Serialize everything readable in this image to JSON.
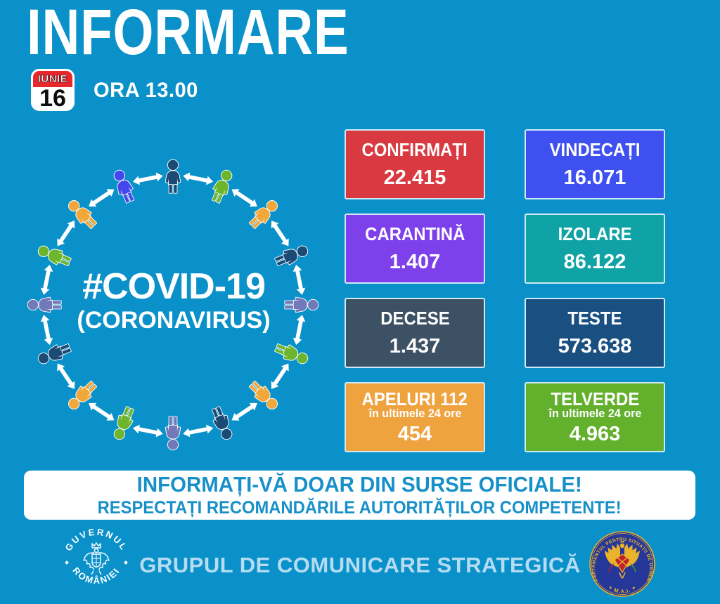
{
  "colors": {
    "background": "#0a91c9",
    "box_border": "#cfe9f6",
    "calendar_red": "#e8262b",
    "banner_text": "#1790c9",
    "footer_text": "#b5dcf2"
  },
  "header": {
    "title": "INFORMARE",
    "time": "ORA 13.00",
    "calendar": {
      "month": "IUNIE",
      "day": "16"
    }
  },
  "ring": {
    "center_line1": "#COVID-19",
    "center_line2": "(CORONAVIRUS)",
    "arrow_color": "#ffffff",
    "people_colors": [
      "#1b4a75",
      "#6cb52d",
      "#f2a73b",
      "#1b4a75",
      "#7279b8",
      "#6cb52d",
      "#f2a73b",
      "#1b4a75",
      "#7279b8",
      "#6cb52d",
      "#f2a73b",
      "#1b4a75",
      "#7279b8",
      "#6cb52d",
      "#f2a73b",
      "#4646ee"
    ]
  },
  "stats": [
    {
      "label": "CONFIRMAȚI",
      "value": "22.415",
      "color": "#d93a41"
    },
    {
      "label": "VINDECAȚI",
      "value": "16.071",
      "color": "#3f50f0"
    },
    {
      "label": "CARANTINĂ",
      "value": "1.407",
      "color": "#7d40ea"
    },
    {
      "label": "IZOLARE",
      "value": "86.122",
      "color": "#10a3a6"
    },
    {
      "label": "DECESE",
      "value": "1.437",
      "color": "#3d5164"
    },
    {
      "label": "TESTE",
      "value": "573.638",
      "color": "#1a4f82"
    },
    {
      "label": "APELURI 112",
      "sublabel": "în ultimele 24 ore",
      "value": "454",
      "color": "#eea33f"
    },
    {
      "label": "TELVERDE",
      "sublabel": "în ultimele 24 ore",
      "value": "4.963",
      "color": "#63b02d"
    }
  ],
  "banner": {
    "line1": "INFORMAȚI-VĂ DOAR DIN SURSE OFICIALE!",
    "line2": "RESPECTAȚI RECOMANDĂRILE AUTORITĂȚILOR COMPETENTE!"
  },
  "footer": {
    "text": "GRUPUL DE COMUNICARE STRATEGICĂ",
    "left_seal": {
      "top_text": "GUVERNUL",
      "bottom_text": "ROMÂNIEI"
    },
    "right_seal": {
      "around_text": "DEPARTAMENTUL PENTRU SITUAȚII DE URGENȚĂ",
      "bottom_text": "✦  M.A.I.  ✦"
    }
  },
  "icons": {
    "calendar-icon": "calendar date page",
    "person-icon": "human figure pictogram",
    "double-arrow-icon": "two-headed transmission arrow",
    "government-seal-icon": "Guvernul României round seal",
    "dsu-seal-icon": "Departamentul pentru Situații de Urgență round seal"
  }
}
